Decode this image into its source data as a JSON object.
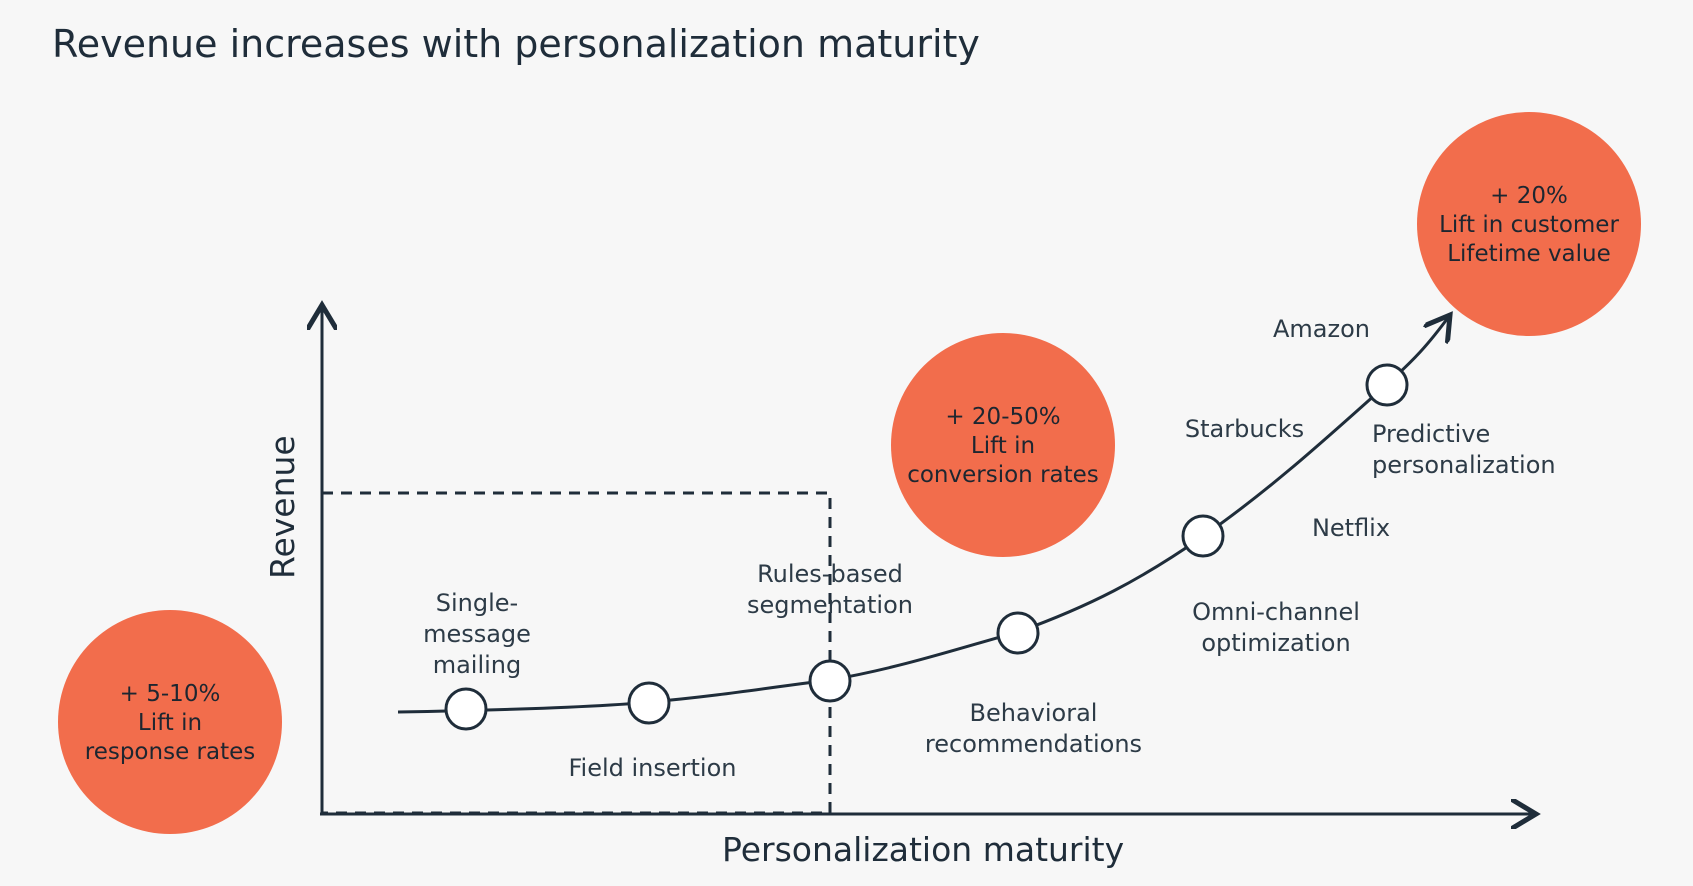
{
  "title": "Revenue increases with personalization maturity",
  "axes": {
    "x_label": "Personalization maturity",
    "y_label": "Revenue"
  },
  "bubbles": [
    {
      "name": "response-rate-lift",
      "text": "+ 5-10%\nLift in\nresponse rates"
    },
    {
      "name": "conversion-rate-lift",
      "text": "+ 20-50%\nLift in\nconversion rates"
    },
    {
      "name": "customer-lifetime-value-lift",
      "text": "+ 20%\nLift in customer\nLifetime value"
    }
  ],
  "stages": [
    "Single-\nmessage\nmailing",
    "Field insertion",
    "Rules-based\nsegmentation",
    "Behavioral\nrecommendations",
    "Omni-channel\noptimization",
    "Predictive\npersonalization"
  ],
  "brands": [
    "Starbucks",
    "Amazon",
    "Netflix"
  ],
  "colors": {
    "accent_orange": "#f26d4c",
    "line_dark": "#1f2d3a",
    "background": "#f7f7f7"
  }
}
